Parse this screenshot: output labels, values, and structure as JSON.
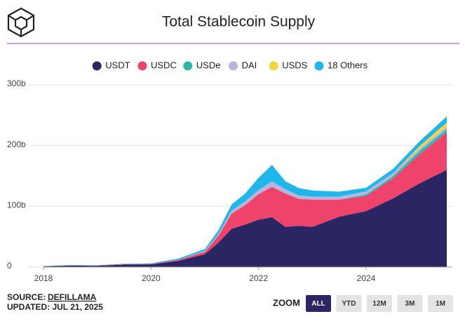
{
  "chart_data": {
    "type": "stacked_area",
    "title": "Total Stablecoin Supply",
    "x": [
      2018,
      2018.5,
      2019,
      2019.5,
      2020,
      2020.5,
      2021,
      2021.25,
      2021.5,
      2021.75,
      2022,
      2022.25,
      2022.5,
      2022.75,
      2023,
      2023.5,
      2024,
      2024.5,
      2025,
      2025.5
    ],
    "series": [
      {
        "name": "USDT",
        "color": "#2b2663",
        "values": [
          1,
          2.5,
          2,
          4,
          4.5,
          10,
          21,
          40,
          63,
          70,
          78,
          82,
          66,
          68,
          66,
          83,
          92,
          113,
          138,
          160
        ]
      },
      {
        "name": "USDC",
        "color": "#f0436b",
        "values": [
          0,
          0.1,
          0.4,
          0.6,
          0.5,
          1.5,
          4,
          11,
          25,
          32,
          42,
          50,
          55,
          44,
          45,
          28,
          25,
          33,
          48,
          62
        ]
      },
      {
        "name": "USDe",
        "color": "#2fb8a8",
        "values": [
          0,
          0,
          0,
          0,
          0,
          0,
          0,
          0,
          0,
          0,
          0,
          0,
          0,
          0,
          0,
          0,
          2.5,
          3.5,
          5.5,
          5
        ]
      },
      {
        "name": "DAI",
        "color": "#b8b4e0",
        "values": [
          0.07,
          0.05,
          0.1,
          0.1,
          0.1,
          0.2,
          1.5,
          3,
          5,
          6,
          7,
          9,
          7,
          6,
          5,
          5,
          5,
          5,
          4,
          4
        ]
      },
      {
        "name": "USDS",
        "color": "#f5d63a",
        "values": [
          0,
          0,
          0,
          0,
          0,
          0,
          0,
          0,
          0,
          0,
          0,
          0,
          0,
          0,
          0,
          0,
          0,
          0,
          4,
          7
        ]
      },
      {
        "name": "18 Others",
        "color": "#1fb6ea",
        "values": [
          0.5,
          0.5,
          0.5,
          0.8,
          1,
          2,
          3,
          6,
          10,
          13,
          20,
          27,
          13,
          12,
          10,
          8,
          6,
          7,
          8,
          10
        ]
      }
    ],
    "xlim": [
      2018,
      2025.6
    ],
    "xticks": [
      2018,
      2020,
      2022,
      2024
    ],
    "ylim": [
      0,
      300
    ],
    "yticks": [
      0,
      {
        "value": 100,
        "label": "100b"
      },
      {
        "value": 200,
        "label": "200b"
      },
      {
        "value": 300,
        "label": "300b"
      }
    ],
    "grid": true,
    "source_label": "SOURCE:",
    "source": "DEFILLAMA",
    "updated": "UPDATED: JUL 21, 2025",
    "zoom_label": "ZOOM",
    "zoom_options": [
      "ALL",
      "YTD",
      "12M",
      "3M",
      "1M"
    ],
    "zoom_active": "ALL"
  }
}
